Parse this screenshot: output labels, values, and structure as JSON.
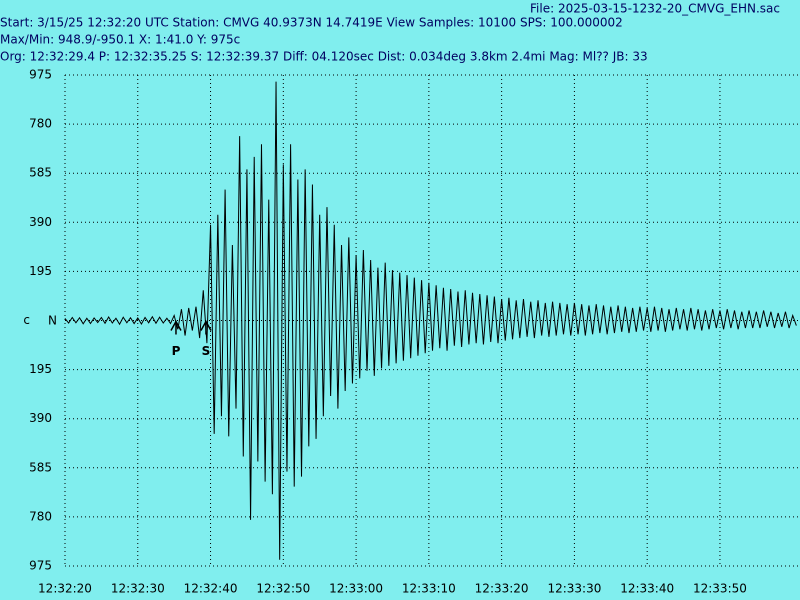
{
  "chart_data": {
    "type": "line",
    "header_lines": [
      "File: 2025-03-15-1232-20_CMVG_EHN.sac",
      "Start: 3/15/25 12:32:20 UTC Station: CMVG 40.9373N 14.7419E View Samples: 10100  SPS: 100.000002",
      "Max/Min: 948.9/-950.1 X: 1:41.0 Y: 975c",
      "Org: 12:32:29.4 P: 12:32:35.25 S: 12:32:39.37 Diff: 04.120sec Dist: 0.034deg 3.8km 2.4mi  Mag: Ml?? JB: 33"
    ],
    "channel": "N",
    "color": "#000000",
    "grid": true,
    "xlim": [
      0,
      101
    ],
    "ylim": [
      -975,
      975
    ],
    "xticks": [
      {
        "value": 0,
        "label": "12:32:20"
      },
      {
        "value": 10,
        "label": "12:32:30"
      },
      {
        "value": 20,
        "label": "12:32:40"
      },
      {
        "value": 30,
        "label": "12:32:50"
      },
      {
        "value": 40,
        "label": "12:33:00"
      },
      {
        "value": 50,
        "label": "12:33:10"
      },
      {
        "value": 60,
        "label": "12:33:20"
      },
      {
        "value": 70,
        "label": "12:33:30"
      },
      {
        "value": 80,
        "label": "12:33:40"
      },
      {
        "value": 90,
        "label": "12:33:50"
      }
    ],
    "yticks": [
      975,
      780,
      585,
      390,
      195,
      {
        "value": 0,
        "label": "c"
      },
      {
        "value": -195,
        "label": "195"
      },
      {
        "value": -390,
        "label": "390"
      },
      {
        "value": -585,
        "label": "585"
      },
      {
        "value": -780,
        "label": "780"
      },
      {
        "value": -975,
        "label": "975"
      }
    ],
    "annotations": [
      {
        "text": "P",
        "x": 15.25
      },
      {
        "text": "S",
        "x": 19.37
      }
    ],
    "x": [
      0,
      0.5,
      1,
      1.5,
      2,
      2.5,
      3,
      3.5,
      4,
      4.5,
      5,
      5.5,
      6,
      6.5,
      7,
      7.5,
      8,
      8.5,
      9,
      9.5,
      10,
      10.5,
      11,
      11.5,
      12,
      12.5,
      13,
      13.5,
      14,
      14.5,
      15,
      15.5,
      16,
      16.5,
      17,
      17.5,
      18,
      18.5,
      19,
      19.5,
      20,
      20.5,
      21,
      21.5,
      22,
      22.5,
      23,
      23.5,
      24,
      24.5,
      25,
      25.5,
      26,
      26.5,
      27,
      27.5,
      28,
      28.5,
      29,
      29.5,
      30,
      30.5,
      31,
      31.5,
      32,
      32.5,
      33,
      33.5,
      34,
      34.5,
      35,
      35.5,
      36,
      36.5,
      37,
      37.5,
      38,
      38.5,
      39,
      39.5,
      40,
      40.5,
      41,
      41.5,
      42,
      42.5,
      43,
      43.5,
      44,
      44.5,
      45,
      45.5,
      46,
      46.5,
      47,
      47.5,
      48,
      48.5,
      49,
      49.5,
      50,
      50.5,
      51,
      51.5,
      52,
      52.5,
      53,
      53.5,
      54,
      54.5,
      55,
      55.5,
      56,
      56.5,
      57,
      57.5,
      58,
      58.5,
      59,
      59.5,
      60,
      60.5,
      61,
      61.5,
      62,
      62.5,
      63,
      63.5,
      64,
      64.5,
      65,
      65.5,
      66,
      66.5,
      67,
      67.5,
      68,
      68.5,
      69,
      69.5,
      70,
      70.5,
      71,
      71.5,
      72,
      72.5,
      73,
      73.5,
      74,
      74.5,
      75,
      75.5,
      76,
      76.5,
      77,
      77.5,
      78,
      78.5,
      79,
      79.5,
      80,
      80.5,
      81,
      81.5,
      82,
      82.5,
      83,
      83.5,
      84,
      84.5,
      85,
      85.5,
      86,
      86.5,
      87,
      87.5,
      88,
      88.5,
      89,
      89.5,
      90,
      90.5,
      91,
      91.5,
      92,
      92.5,
      93,
      93.5,
      94,
      94.5,
      95,
      95.5,
      96,
      96.5,
      97,
      97.5,
      98,
      98.5,
      99,
      99.5,
      100,
      100.5
    ],
    "values": [
      8,
      -10,
      12,
      -9,
      11,
      -13,
      9,
      -12,
      10,
      -8,
      12,
      -11,
      14,
      -10,
      9,
      -15,
      13,
      -9,
      11,
      -12,
      10,
      -14,
      12,
      -9,
      15,
      -11,
      13,
      -10,
      9,
      -12,
      20,
      -35,
      45,
      -60,
      50,
      -40,
      55,
      -70,
      120,
      -90,
      380,
      -450,
      420,
      -380,
      520,
      -460,
      300,
      -350,
      732,
      -540,
      600,
      -792,
      650,
      -560,
      700,
      -640,
      480,
      -690,
      948.9,
      -950.1,
      620,
      -600,
      700,
      -660,
      560,
      -620,
      600,
      -500,
      540,
      -470,
      420,
      -380,
      450,
      -300,
      380,
      -350,
      300,
      -280,
      330,
      -250,
      260,
      -230,
      280,
      -200,
      240,
      -220,
      210,
      -190,
      230,
      -180,
      200,
      -170,
      190,
      -160,
      180,
      -150,
      170,
      -140,
      160,
      -130,
      150,
      -120,
      140,
      -110,
      130,
      -120,
      125,
      -100,
      115,
      -105,
      120,
      -95,
      110,
      -90,
      105,
      -95,
      100,
      -85,
      95,
      -90,
      85,
      -80,
      90,
      -75,
      80,
      -70,
      85,
      -65,
      75,
      -70,
      80,
      -60,
      70,
      -65,
      75,
      -60,
      70,
      -55,
      65,
      -60,
      70,
      -55,
      65,
      -60,
      60,
      -55,
      65,
      -50,
      60,
      -55,
      55,
      -50,
      60,
      -45,
      55,
      -50,
      50,
      -45,
      55,
      -40,
      50,
      -45,
      55,
      -40,
      50,
      -45,
      45,
      -40,
      50,
      -35,
      45,
      -40,
      50,
      -35,
      45,
      -40,
      40,
      -35,
      45,
      -30,
      40,
      -35,
      45,
      -30,
      40,
      -35,
      35,
      -30,
      40,
      -30,
      35,
      -30,
      40,
      -25,
      35,
      -30,
      30,
      -25,
      35,
      -30,
      20,
      -20
    ]
  }
}
